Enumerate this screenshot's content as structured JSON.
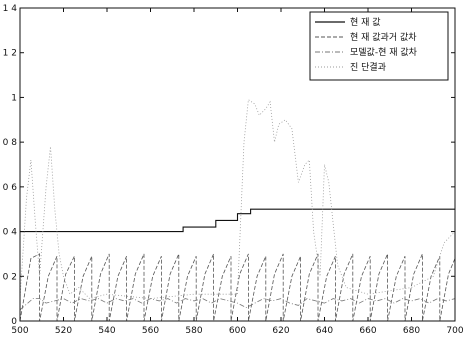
{
  "chart_data": {
    "type": "line",
    "title": "",
    "xlabel": "",
    "ylabel": "",
    "xlim": [
      500,
      700
    ],
    "ylim": [
      0,
      1.4
    ],
    "x_ticks": [
      500,
      520,
      540,
      560,
      580,
      600,
      620,
      640,
      660,
      680,
      700
    ],
    "x_tick_labels": [
      "500",
      "520",
      "540",
      "560",
      "580",
      "600",
      "620",
      "640",
      "660",
      "680",
      "700"
    ],
    "y_ticks": [
      0,
      0.2,
      0.4,
      0.6,
      0.8,
      1.0,
      1.2,
      1.4
    ],
    "y_tick_labels": [
      "0",
      "0 2",
      "0 4",
      "0 6",
      "0 8",
      "1",
      "1 2",
      "1 4"
    ],
    "grid": false,
    "legend_position": "top-right",
    "series": [
      {
        "name": "현 재 값",
        "style": "solid",
        "color": "#111111",
        "x": [
          500,
          575,
          575,
          590,
          590,
          600,
          600,
          606,
          606,
          700
        ],
        "y": [
          0.4,
          0.4,
          0.42,
          0.42,
          0.45,
          0.45,
          0.48,
          0.48,
          0.5,
          0.5
        ]
      },
      {
        "name": "현 재 값과거 값차",
        "style": "dashed",
        "color": "#555555",
        "x": [
          500,
          505,
          509,
          509,
          513,
          517,
          517,
          521,
          525,
          525,
          529,
          533,
          533,
          537,
          541,
          541,
          545,
          549,
          549,
          553,
          557,
          557,
          561,
          565,
          565,
          569,
          573,
          573,
          577,
          581,
          581,
          585,
          589,
          589,
          593,
          597,
          597,
          601,
          605,
          605,
          609,
          613,
          613,
          617,
          621,
          621,
          625,
          629,
          629,
          633,
          637,
          637,
          641,
          645,
          645,
          649,
          653,
          653,
          657,
          661,
          661,
          665,
          669,
          669,
          673,
          677,
          677,
          681,
          685,
          685,
          689,
          693,
          693,
          697,
          700
        ],
        "y": [
          0.0,
          0.28,
          0.3,
          0.0,
          0.2,
          0.29,
          0.0,
          0.21,
          0.29,
          0.0,
          0.2,
          0.29,
          0.0,
          0.21,
          0.3,
          0.0,
          0.2,
          0.29,
          0.0,
          0.21,
          0.3,
          0.0,
          0.2,
          0.29,
          0.0,
          0.21,
          0.3,
          0.0,
          0.2,
          0.29,
          0.0,
          0.21,
          0.3,
          0.0,
          0.2,
          0.29,
          0.0,
          0.21,
          0.3,
          0.0,
          0.2,
          0.29,
          0.0,
          0.21,
          0.3,
          0.0,
          0.2,
          0.29,
          0.0,
          0.21,
          0.3,
          0.0,
          0.2,
          0.29,
          0.0,
          0.21,
          0.3,
          0.0,
          0.2,
          0.29,
          0.0,
          0.21,
          0.3,
          0.0,
          0.2,
          0.29,
          0.0,
          0.21,
          0.3,
          0.0,
          0.2,
          0.29,
          0.0,
          0.21,
          0.28
        ]
      },
      {
        "name": "모델값-현 재 값차",
        "style": "dashdot",
        "color": "#777777",
        "x": [
          500,
          506,
          509,
          512,
          516,
          520,
          524,
          528,
          532,
          536,
          540,
          544,
          548,
          552,
          556,
          560,
          564,
          568,
          572,
          576,
          580,
          584,
          588,
          592,
          596,
          600,
          604,
          608,
          612,
          616,
          620,
          624,
          628,
          632,
          636,
          640,
          644,
          648,
          652,
          656,
          660,
          664,
          668,
          672,
          676,
          680,
          684,
          688,
          692,
          696,
          700
        ],
        "y": [
          0.05,
          0.1,
          0.1,
          0.08,
          0.09,
          0.1,
          0.08,
          0.1,
          0.09,
          0.1,
          0.08,
          0.1,
          0.09,
          0.1,
          0.08,
          0.1,
          0.09,
          0.1,
          0.08,
          0.1,
          0.09,
          0.1,
          0.08,
          0.1,
          0.09,
          0.08,
          0.06,
          0.08,
          0.1,
          0.09,
          0.1,
          0.08,
          0.07,
          0.1,
          0.09,
          0.08,
          0.1,
          0.09,
          0.1,
          0.08,
          0.1,
          0.09,
          0.1,
          0.08,
          0.1,
          0.09,
          0.1,
          0.08,
          0.1,
          0.09,
          0.1
        ]
      },
      {
        "name": "진 단결과",
        "style": "dotted",
        "color": "#999999",
        "x": [
          500,
          503,
          505,
          507,
          509,
          512,
          514,
          516,
          518,
          520,
          523,
          527,
          532,
          540,
          560,
          580,
          600,
          603,
          605,
          608,
          610,
          613,
          615,
          617,
          619,
          622,
          625,
          628,
          631,
          633,
          635,
          638,
          640,
          642,
          646,
          650,
          660,
          680,
          690,
          695,
          700
        ],
        "y": [
          0.1,
          0.55,
          0.72,
          0.45,
          0.2,
          0.6,
          0.78,
          0.5,
          0.3,
          0.2,
          0.12,
          0.15,
          0.1,
          0.12,
          0.1,
          0.12,
          0.12,
          0.8,
          0.99,
          0.97,
          0.92,
          0.95,
          0.98,
          0.8,
          0.88,
          0.9,
          0.86,
          0.62,
          0.7,
          0.72,
          0.4,
          0.2,
          0.7,
          0.62,
          0.25,
          0.15,
          0.12,
          0.15,
          0.2,
          0.35,
          0.4
        ]
      }
    ]
  }
}
